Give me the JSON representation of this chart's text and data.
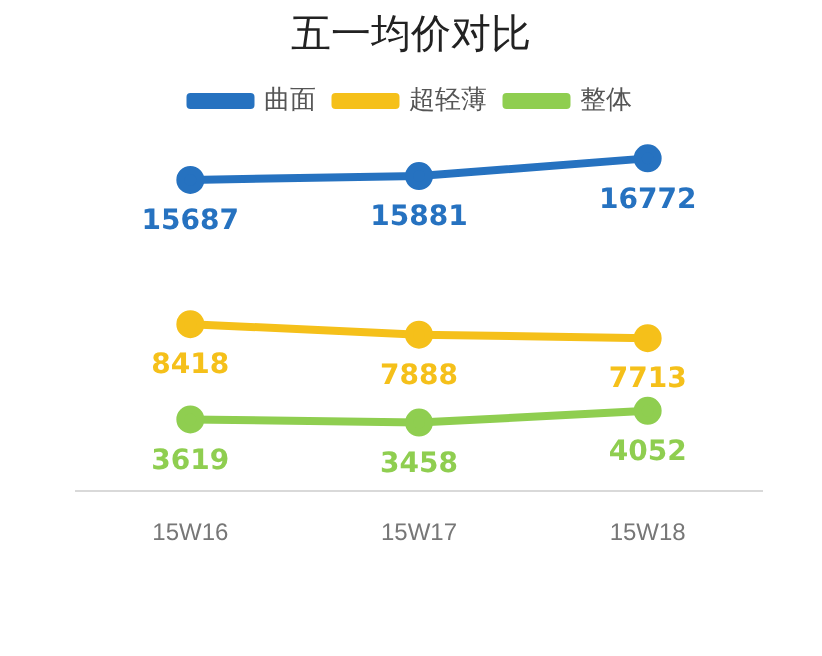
{
  "chart_data": {
    "type": "line",
    "title": "五一均价对比",
    "categories": [
      "15W16",
      "15W17",
      "15W18"
    ],
    "series": [
      {
        "name": "曲面",
        "color": "#2672c0",
        "values": [
          15687,
          15881,
          16772
        ]
      },
      {
        "name": "超轻薄",
        "color": "#f5c01a",
        "values": [
          8418,
          7888,
          7713
        ]
      },
      {
        "name": "整体",
        "color": "#8fce50",
        "values": [
          3619,
          3458,
          4052
        ]
      }
    ],
    "tick_labels": "x",
    "grid": false,
    "legend": "top",
    "marker": "circle",
    "line_style": "solid",
    "data_labels": true
  }
}
